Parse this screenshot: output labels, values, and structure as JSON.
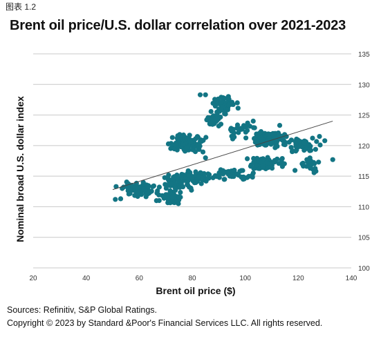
{
  "figure_label": "图表 1.2",
  "title": "Brent oil price/U.S. dollar correlation over 2021-2023",
  "sources": "Sources: Refinitiv, S&P Global Ratings.",
  "copyright": "Copyright © 2023 by Standard &Poor's Financial Services LLC. All rights reserved.",
  "colors": {
    "points": "#137584",
    "trend": "#444444",
    "grid": "#c8c8c8"
  },
  "chart_data": {
    "type": "scatter",
    "xlabel": "Brent oil price ($)",
    "ylabel": "Nominal broad U.S. dollar index",
    "xlim": [
      20,
      140
    ],
    "ylim": [
      100,
      135
    ],
    "xticks": [
      20,
      40,
      60,
      80,
      100,
      120,
      140
    ],
    "yticks": [
      100,
      105,
      110,
      115,
      120,
      125,
      130,
      135
    ],
    "grid": "horizontal",
    "y_axis_side": "right",
    "trendline": {
      "x": [
        50,
        133
      ],
      "y": [
        112.8,
        124.0
      ]
    },
    "clusters": [
      {
        "cx": 60,
        "cy": 112.8,
        "sx": 5.5,
        "sy": 0.9,
        "n": 75
      },
      {
        "cx": 72,
        "cy": 111.5,
        "sx": 3.5,
        "sy": 0.8,
        "n": 55
      },
      {
        "cx": 75,
        "cy": 114.0,
        "sx": 5.0,
        "sy": 1.0,
        "n": 55
      },
      {
        "cx": 82,
        "cy": 114.8,
        "sx": 4.0,
        "sy": 0.7,
        "n": 45
      },
      {
        "cx": 77,
        "cy": 120.3,
        "sx": 5.5,
        "sy": 1.1,
        "n": 115
      },
      {
        "cx": 92,
        "cy": 126.5,
        "sx": 3.5,
        "sy": 1.3,
        "n": 50
      },
      {
        "cx": 88,
        "cy": 124.2,
        "sx": 3.0,
        "sy": 0.8,
        "n": 25
      },
      {
        "cx": 98,
        "cy": 122.5,
        "sx": 4.5,
        "sy": 1.0,
        "n": 25
      },
      {
        "cx": 95,
        "cy": 115.3,
        "sx": 6.0,
        "sy": 0.8,
        "n": 50
      },
      {
        "cx": 110,
        "cy": 121.0,
        "sx": 5.5,
        "sy": 1.2,
        "n": 90
      },
      {
        "cx": 108,
        "cy": 117.0,
        "sx": 6.0,
        "sy": 0.9,
        "n": 65
      },
      {
        "cx": 122,
        "cy": 120.2,
        "sx": 4.0,
        "sy": 1.0,
        "n": 50
      },
      {
        "cx": 123,
        "cy": 117.0,
        "sx": 4.0,
        "sy": 0.9,
        "n": 25
      }
    ],
    "extra_points": [
      {
        "x": 51,
        "y": 111.2
      },
      {
        "x": 53,
        "y": 111.3
      },
      {
        "x": 83,
        "y": 128.3
      },
      {
        "x": 85,
        "y": 128.3
      },
      {
        "x": 133,
        "y": 117.7
      },
      {
        "x": 130,
        "y": 120.8
      },
      {
        "x": 128,
        "y": 121.5
      },
      {
        "x": 97,
        "y": 127.0
      },
      {
        "x": 113,
        "y": 123.3
      },
      {
        "x": 103,
        "y": 124.0
      },
      {
        "x": 85,
        "y": 118.0
      },
      {
        "x": 90,
        "y": 123.2
      }
    ]
  }
}
